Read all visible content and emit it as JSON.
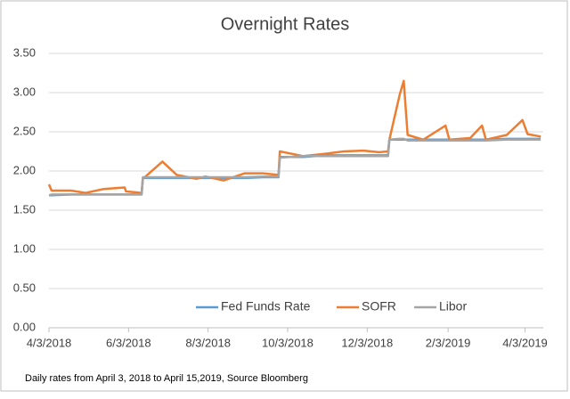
{
  "chart_data": {
    "type": "line",
    "title": "Overnight Rates",
    "note": "Daily rates from April 3, 2018 to April 15,2019, Source Bloomberg",
    "x": [
      "4/3/2018",
      "4/5/2018",
      "4/20/2018",
      "5/1/2018",
      "5/15/2018",
      "5/31/2018",
      "6/1/2018",
      "6/13/2018",
      "6/14/2018",
      "6/29/2018",
      "7/10/2018",
      "7/25/2018",
      "8/1/2018",
      "8/15/2018",
      "8/31/2018",
      "9/14/2018",
      "9/26/2018",
      "9/27/2018",
      "10/15/2018",
      "11/1/2018",
      "11/15/2018",
      "11/30/2018",
      "12/12/2018",
      "12/19/2018",
      "12/20/2018",
      "12/28/2018",
      "12/31/2018",
      "1/3/2019",
      "1/15/2019",
      "2/1/2019",
      "2/4/2019",
      "2/20/2019",
      "3/1/2019",
      "3/4/2019",
      "3/20/2019",
      "4/1/2019",
      "4/5/2019",
      "4/15/2019"
    ],
    "series": [
      {
        "name": "Fed Funds Rate",
        "color": "#5b9bd5",
        "values": [
          1.69,
          1.69,
          1.7,
          1.7,
          1.7,
          1.7,
          1.7,
          1.7,
          1.91,
          1.91,
          1.91,
          1.91,
          1.91,
          1.91,
          1.91,
          1.92,
          1.92,
          2.18,
          2.18,
          2.2,
          2.2,
          2.2,
          2.2,
          2.2,
          2.4,
          2.4,
          2.4,
          2.4,
          2.4,
          2.4,
          2.4,
          2.4,
          2.4,
          2.4,
          2.41,
          2.41,
          2.41,
          2.41
        ]
      },
      {
        "name": "SOFR",
        "color": "#ed7d31",
        "values": [
          1.83,
          1.75,
          1.75,
          1.72,
          1.77,
          1.79,
          1.74,
          1.72,
          1.9,
          2.12,
          1.95,
          1.9,
          1.93,
          1.88,
          1.97,
          1.97,
          1.95,
          2.25,
          2.19,
          2.22,
          2.25,
          2.26,
          2.24,
          2.25,
          2.4,
          2.98,
          3.15,
          2.46,
          2.4,
          2.58,
          2.4,
          2.42,
          2.58,
          2.4,
          2.46,
          2.65,
          2.47,
          2.44
        ]
      },
      {
        "name": "Libor",
        "color": "#a5a5a5",
        "values": [
          1.69,
          1.7,
          1.7,
          1.7,
          1.7,
          1.7,
          1.7,
          1.7,
          1.92,
          1.92,
          1.92,
          1.92,
          1.92,
          1.92,
          1.92,
          1.93,
          1.93,
          2.17,
          2.19,
          2.19,
          2.19,
          2.19,
          2.19,
          2.19,
          2.4,
          2.41,
          2.41,
          2.39,
          2.39,
          2.39,
          2.39,
          2.39,
          2.39,
          2.39,
          2.4,
          2.4,
          2.4,
          2.4
        ]
      }
    ],
    "xlim": [
      "4/3/2018",
      "4/17/2019"
    ],
    "xticks": [
      "4/3/2018",
      "6/3/2018",
      "8/3/2018",
      "10/3/2018",
      "12/3/2018",
      "2/3/2019",
      "4/3/2019"
    ],
    "ylim": [
      0,
      3.5
    ],
    "yticks": [
      {
        "value": 0,
        "label": "0.00"
      },
      {
        "value": 0.5,
        "label": "0.50"
      },
      {
        "value": 1,
        "label": "1.00"
      },
      {
        "value": 1.5,
        "label": "1.50"
      },
      {
        "value": 2,
        "label": "2.00"
      },
      {
        "value": 2.5,
        "label": "2.50"
      },
      {
        "value": 3,
        "label": "3.00"
      },
      {
        "value": 3.5,
        "label": "3.50"
      }
    ],
    "grid": true,
    "legend": "bottom"
  }
}
